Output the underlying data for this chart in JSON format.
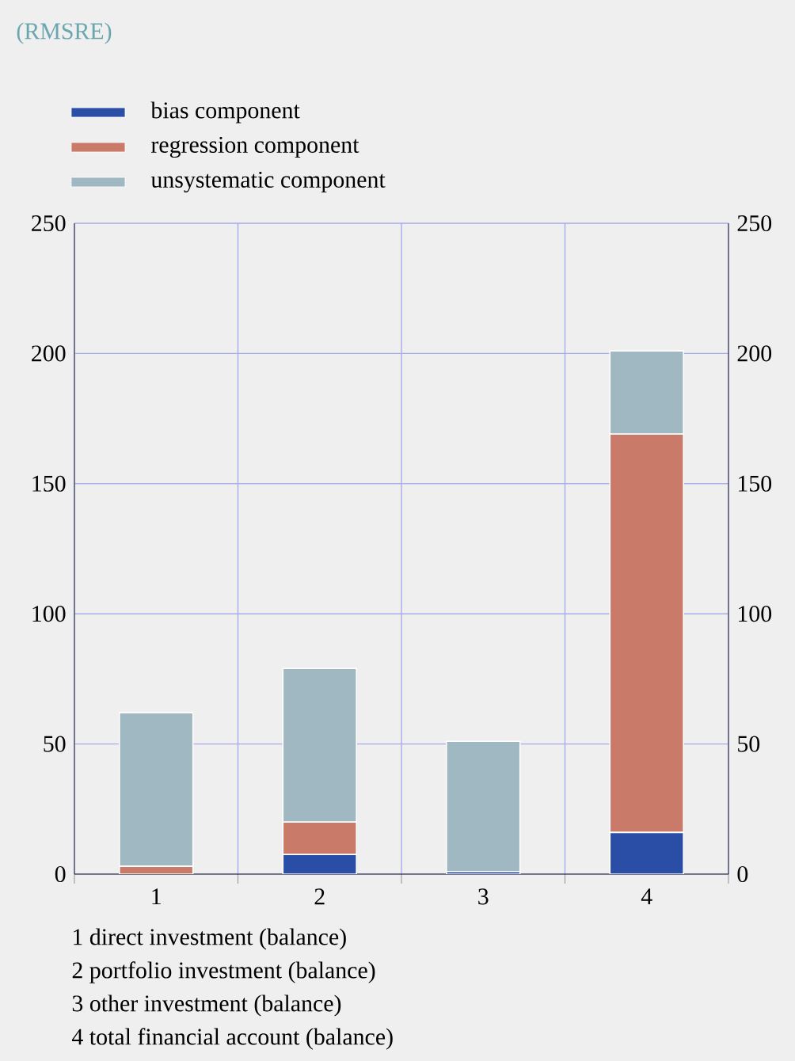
{
  "chart_data": {
    "type": "bar",
    "subtitle": "(RMSRE)",
    "stacked": true,
    "categories": [
      "1",
      "2",
      "3",
      "4"
    ],
    "series": [
      {
        "name": "bias component",
        "color": "#2a4ea6",
        "values": [
          0,
          7.5,
          1,
          16
        ]
      },
      {
        "name": "regression component",
        "color": "#c97a68",
        "values": [
          3,
          12.5,
          0,
          153
        ]
      },
      {
        "name": "unsystematic component",
        "color": "#9fb8c2",
        "values": [
          59,
          59,
          50,
          32
        ]
      }
    ],
    "ylim": [
      0,
      250
    ],
    "yticks": [
      0,
      50,
      100,
      150,
      200,
      250
    ],
    "y2lim": [
      0,
      250
    ],
    "y2ticks": [
      0,
      50,
      100,
      150,
      200,
      250
    ],
    "grid": true,
    "legend": "top left",
    "annotations": [
      "1 direct investment (balance)",
      "2 portfolio investment (balance)",
      "3 other investment (balance)",
      "4 total financial account (balance)"
    ]
  }
}
